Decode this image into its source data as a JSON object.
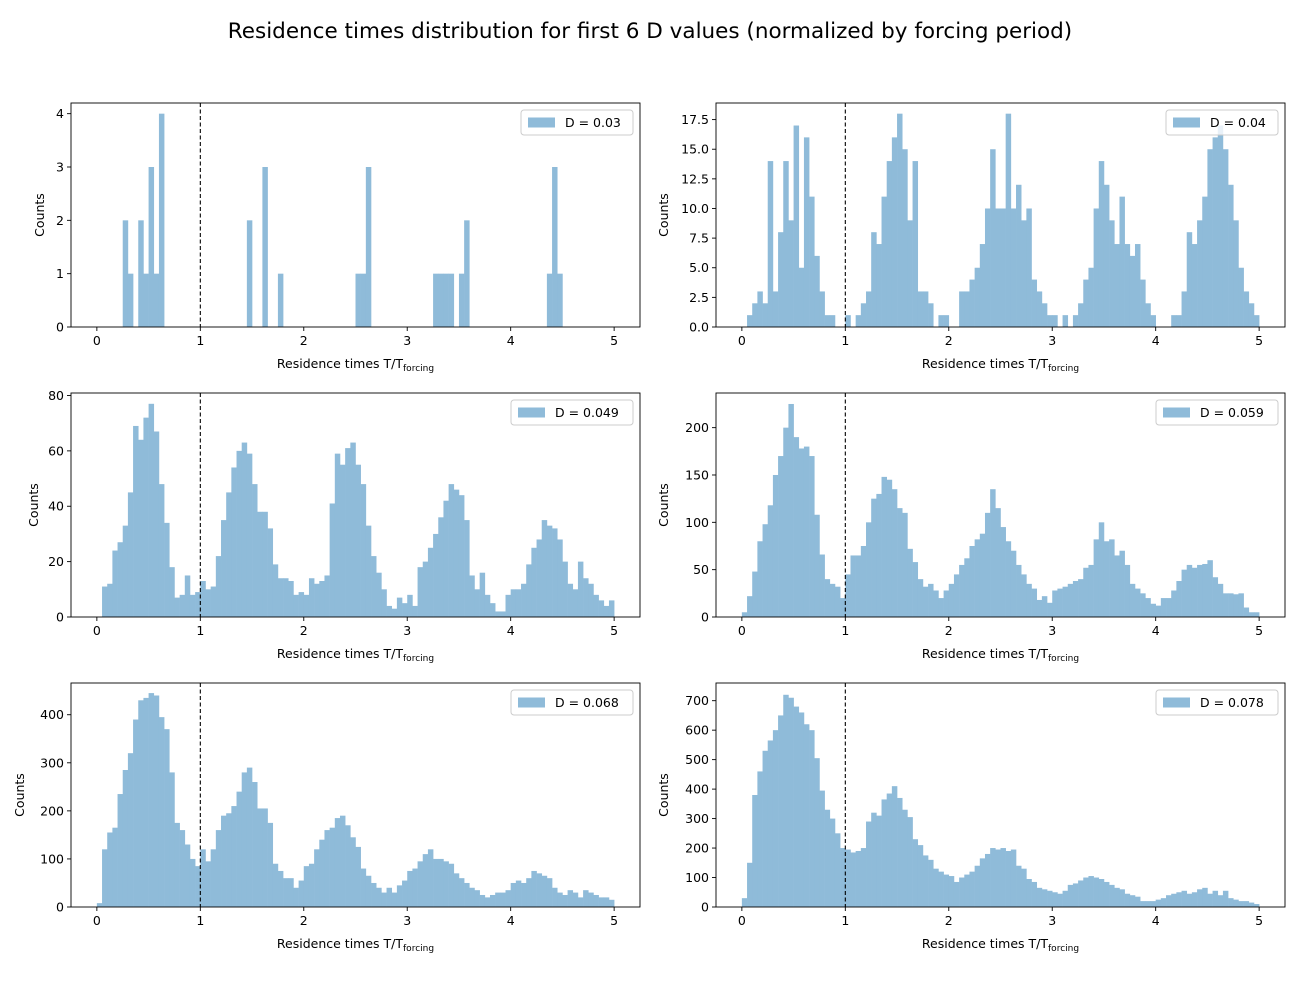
{
  "figure": {
    "title": "Residence times distribution for first 6 D values (normalized by forcing period)"
  },
  "bar_color": "#8fbbd9",
  "chart_data": [
    {
      "type": "bar",
      "legend": "D = 0.03",
      "legend_position": "top-right",
      "xlabel": "Residence times T/T",
      "xlabel_subscript": "forcing",
      "ylabel": "Counts",
      "xlim": [
        -0.25,
        5.25
      ],
      "ylim": [
        0,
        4.2
      ],
      "xticks": [
        0,
        1,
        2,
        3,
        4,
        5
      ],
      "yticks": [
        0,
        1,
        2,
        3,
        4
      ],
      "ytick_labels": [
        "0",
        "1",
        "2",
        "3",
        "4"
      ],
      "vline_x": 1,
      "bin_start": 0,
      "bin_width": 0.05,
      "values": [
        0,
        0,
        0,
        0,
        0,
        2,
        1,
        0,
        2,
        1,
        3,
        1,
        4,
        0,
        0,
        0,
        0,
        0,
        0,
        0,
        0,
        0,
        0,
        0,
        0,
        0,
        0,
        0,
        0,
        2,
        0,
        0,
        3,
        0,
        0,
        1,
        0,
        0,
        0,
        0,
        0,
        0,
        0,
        0,
        0,
        0,
        0,
        0,
        0,
        0,
        1,
        1,
        3,
        0,
        0,
        0,
        0,
        0,
        0,
        0,
        0,
        0,
        0,
        0,
        0,
        1,
        1,
        1,
        1,
        0,
        1,
        2,
        0,
        0,
        0,
        0,
        0,
        0,
        0,
        0,
        0,
        0,
        0,
        0,
        0,
        0,
        0,
        1,
        3,
        1,
        0,
        0,
        0,
        0,
        0,
        0,
        0,
        0,
        0,
        0
      ]
    },
    {
      "type": "bar",
      "legend": "D = 0.04",
      "legend_position": "top-right",
      "xlabel": "Residence times T/T",
      "xlabel_subscript": "forcing",
      "ylabel": "Counts",
      "xlim": [
        -0.25,
        5.25
      ],
      "ylim": [
        0,
        18.9
      ],
      "xticks": [
        0,
        1,
        2,
        3,
        4,
        5
      ],
      "yticks": [
        0,
        2.5,
        5,
        7.5,
        10,
        12.5,
        15,
        17.5
      ],
      "ytick_labels": [
        "0.0",
        "2.5",
        "5.0",
        "7.5",
        "10.0",
        "12.5",
        "15.0",
        "17.5"
      ],
      "vline_x": 1,
      "bin_start": 0,
      "bin_width": 0.05,
      "values": [
        0,
        1,
        2,
        3,
        2,
        14,
        3,
        8,
        14,
        9,
        17,
        5,
        16,
        11,
        6,
        3,
        1,
        1,
        0,
        0,
        1,
        0,
        1,
        2,
        3,
        8,
        7,
        11,
        14,
        16,
        18,
        15,
        9,
        14,
        3,
        3,
        2,
        0,
        1,
        1,
        0,
        0,
        3,
        3,
        4,
        5,
        7,
        10,
        15,
        10,
        10,
        18,
        10,
        12,
        9,
        10,
        4,
        3,
        2,
        1,
        1,
        0,
        1,
        0,
        1,
        2,
        4,
        5,
        10,
        14,
        12,
        9,
        7,
        11,
        7,
        6,
        7,
        4,
        2,
        1,
        0,
        0,
        0,
        1,
        1,
        3,
        8,
        7,
        9,
        11,
        15,
        16,
        17,
        15,
        12,
        9,
        5,
        3,
        2,
        1
      ]
    },
    {
      "type": "bar",
      "legend": "D = 0.049",
      "legend_position": "top-right",
      "xlabel": "Residence times T/T",
      "xlabel_subscript": "forcing",
      "ylabel": "Counts",
      "xlim": [
        -0.25,
        5.25
      ],
      "ylim": [
        0,
        80.9
      ],
      "xticks": [
        0,
        1,
        2,
        3,
        4,
        5
      ],
      "yticks": [
        0,
        20,
        40,
        60,
        80
      ],
      "ytick_labels": [
        "0",
        "20",
        "40",
        "60",
        "80"
      ],
      "vline_x": 1,
      "bin_start": 0,
      "bin_width": 0.05,
      "values": [
        0,
        11,
        12,
        24,
        27,
        33,
        45,
        69,
        64,
        72,
        77,
        67,
        48,
        34,
        18,
        7,
        8,
        15,
        8,
        9,
        13,
        10,
        11,
        22,
        35,
        45,
        54,
        60,
        63,
        59,
        48,
        38,
        38,
        32,
        19,
        14,
        14,
        13,
        8,
        9,
        8,
        14,
        12,
        13,
        15,
        41,
        59,
        55,
        61,
        63,
        55,
        48,
        33,
        22,
        16,
        10,
        4,
        3,
        7,
        5,
        8,
        4,
        18,
        20,
        25,
        30,
        36,
        42,
        48,
        46,
        44,
        35,
        15,
        10,
        16,
        8,
        5,
        2,
        2,
        8,
        10,
        10,
        12,
        19,
        25,
        28,
        35,
        33,
        32,
        28,
        20,
        12,
        10,
        20,
        14,
        12,
        8,
        6,
        4,
        6
      ]
    },
    {
      "type": "bar",
      "legend": "D = 0.059",
      "legend_position": "top-right",
      "xlabel": "Residence times T/T",
      "xlabel_subscript": "forcing",
      "ylabel": "Counts",
      "xlim": [
        -0.25,
        5.25
      ],
      "ylim": [
        0,
        236.6
      ],
      "xticks": [
        0,
        1,
        2,
        3,
        4,
        5
      ],
      "yticks": [
        0,
        50,
        100,
        150,
        200
      ],
      "ytick_labels": [
        "0",
        "50",
        "100",
        "150",
        "200"
      ],
      "vline_x": 1,
      "bin_start": 0,
      "bin_width": 0.05,
      "values": [
        5,
        22,
        48,
        80,
        98,
        118,
        150,
        170,
        200,
        225,
        190,
        178,
        180,
        170,
        108,
        66,
        40,
        35,
        32,
        20,
        45,
        65,
        65,
        75,
        100,
        125,
        130,
        148,
        145,
        135,
        115,
        110,
        72,
        58,
        40,
        32,
        35,
        28,
        20,
        28,
        35,
        45,
        55,
        62,
        75,
        82,
        88,
        110,
        135,
        115,
        95,
        80,
        70,
        55,
        45,
        35,
        30,
        18,
        22,
        15,
        28,
        30,
        32,
        35,
        38,
        40,
        52,
        55,
        82,
        100,
        80,
        82,
        65,
        70,
        55,
        35,
        30,
        25,
        20,
        14,
        12,
        20,
        20,
        28,
        38,
        50,
        55,
        52,
        55,
        56,
        60,
        42,
        35,
        25,
        25,
        24,
        25,
        10,
        5,
        5
      ]
    },
    {
      "type": "bar",
      "legend": "D = 0.068",
      "legend_position": "top-right",
      "xlabel": "Residence times T/T",
      "xlabel_subscript": "forcing",
      "ylabel": "Counts",
      "xlim": [
        -0.25,
        5.25
      ],
      "ylim": [
        0,
        466
      ],
      "xticks": [
        0,
        1,
        2,
        3,
        4,
        5
      ],
      "yticks": [
        0,
        100,
        200,
        300,
        400
      ],
      "ytick_labels": [
        "0",
        "100",
        "200",
        "300",
        "400"
      ],
      "vline_x": 1,
      "bin_start": 0,
      "bin_width": 0.05,
      "values": [
        8,
        120,
        155,
        165,
        235,
        285,
        320,
        390,
        430,
        435,
        445,
        440,
        395,
        370,
        280,
        175,
        160,
        130,
        100,
        85,
        120,
        95,
        120,
        160,
        190,
        195,
        210,
        240,
        280,
        290,
        260,
        205,
        205,
        175,
        90,
        75,
        60,
        60,
        40,
        55,
        85,
        90,
        120,
        140,
        160,
        165,
        185,
        190,
        170,
        145,
        125,
        80,
        65,
        50,
        40,
        30,
        40,
        30,
        45,
        55,
        75,
        80,
        95,
        110,
        120,
        100,
        100,
        95,
        90,
        70,
        60,
        50,
        40,
        35,
        25,
        20,
        25,
        30,
        30,
        35,
        50,
        55,
        50,
        60,
        75,
        70,
        65,
        60,
        40,
        30,
        25,
        35,
        30,
        20,
        35,
        30,
        25,
        20,
        20,
        15
      ]
    },
    {
      "type": "bar",
      "legend": "D = 0.078",
      "legend_position": "top-right",
      "xlabel": "Residence times T/T",
      "xlabel_subscript": "forcing",
      "ylabel": "Counts",
      "xlim": [
        -0.25,
        5.25
      ],
      "ylim": [
        0,
        760
      ],
      "xticks": [
        0,
        1,
        2,
        3,
        4,
        5
      ],
      "yticks": [
        0,
        100,
        200,
        300,
        400,
        500,
        600,
        700
      ],
      "ytick_labels": [
        "0",
        "100",
        "200",
        "300",
        "400",
        "500",
        "600",
        "700"
      ],
      "vline_x": 1,
      "bin_start": 0,
      "bin_width": 0.05,
      "values": [
        30,
        150,
        380,
        460,
        530,
        565,
        600,
        650,
        720,
        710,
        680,
        660,
        620,
        600,
        505,
        395,
        330,
        300,
        250,
        200,
        195,
        185,
        190,
        200,
        290,
        320,
        310,
        365,
        385,
        410,
        370,
        330,
        305,
        230,
        210,
        175,
        160,
        130,
        120,
        110,
        105,
        85,
        100,
        110,
        120,
        140,
        165,
        180,
        200,
        195,
        200,
        190,
        195,
        140,
        130,
        95,
        85,
        65,
        60,
        55,
        50,
        45,
        55,
        75,
        80,
        90,
        100,
        105,
        100,
        95,
        85,
        75,
        65,
        60,
        45,
        40,
        35,
        20,
        20,
        20,
        25,
        30,
        40,
        45,
        50,
        55,
        45,
        50,
        60,
        65,
        45,
        55,
        40,
        55,
        30,
        25,
        20,
        20,
        15,
        10
      ]
    }
  ]
}
